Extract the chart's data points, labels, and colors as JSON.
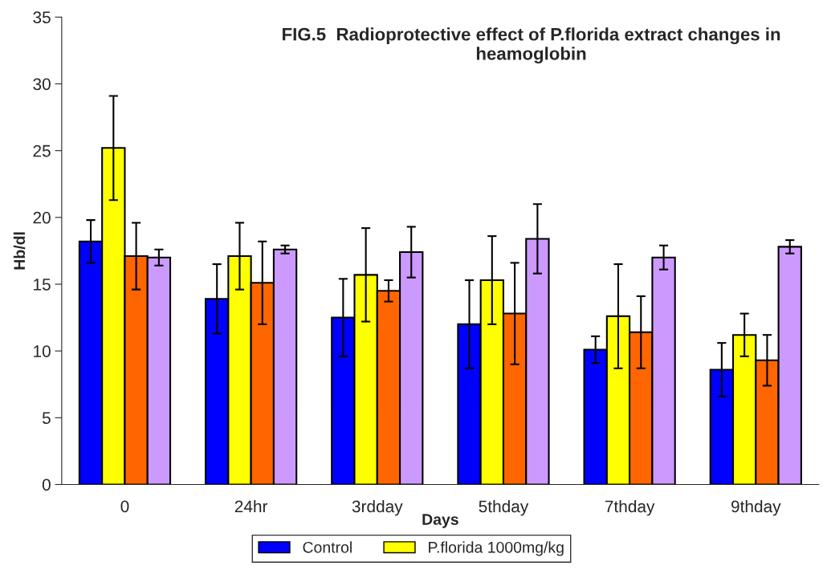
{
  "chart_data": {
    "type": "bar",
    "title": "FIG.5  Radioprotective effect of P.florida extract changes in heamoglobin",
    "xlabel": "Days",
    "ylabel": "Hb/dl",
    "categories": [
      "0",
      "24hr",
      "3rdday",
      "5thday",
      "7thday",
      "9thday"
    ],
    "series": [
      {
        "name": "Control",
        "color": "#0000ff",
        "values": [
          18.2,
          13.9,
          12.5,
          12.0,
          10.1,
          8.6
        ],
        "errors": [
          1.6,
          2.6,
          2.9,
          3.3,
          1.0,
          2.0
        ]
      },
      {
        "name": "P.florida 1000mg/kg",
        "color": "#ffff00",
        "values": [
          25.2,
          17.1,
          15.7,
          15.3,
          12.6,
          11.2
        ],
        "errors": [
          3.9,
          2.5,
          3.5,
          3.3,
          3.9,
          1.6
        ]
      },
      {
        "color": "#ff6600",
        "values": [
          17.1,
          15.1,
          14.5,
          12.8,
          11.4,
          9.3
        ],
        "errors": [
          2.5,
          3.1,
          0.8,
          3.8,
          2.7,
          1.9
        ]
      },
      {
        "color": "#cc99ff",
        "values": [
          17.0,
          17.6,
          17.4,
          18.4,
          17.0,
          17.8
        ],
        "errors": [
          0.6,
          0.3,
          1.9,
          2.6,
          0.9,
          0.5
        ]
      }
    ],
    "ylim": [
      0,
      35
    ],
    "yticks": [
      0,
      5,
      10,
      15,
      20,
      25,
      30,
      35
    ],
    "grid": false,
    "legend": "bottom"
  }
}
